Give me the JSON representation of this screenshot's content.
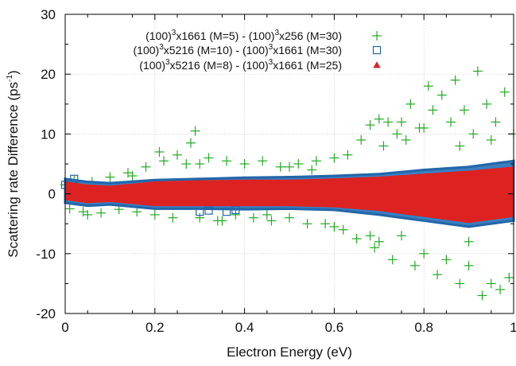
{
  "chart_data": {
    "type": "scatter",
    "xlabel": "Electron Energy (eV)",
    "ylabel_main": "Scattering rate Difference (ps",
    "ylabel_sup": "-1",
    "ylabel_close": ")",
    "xlim": [
      0,
      1
    ],
    "ylim": [
      -20,
      30
    ],
    "xticks": [
      0,
      0.2,
      0.4,
      0.6,
      0.8,
      1
    ],
    "xtick_labels": [
      "0",
      "0.2",
      "0.4",
      "0.6",
      "0.8",
      "1"
    ],
    "yticks": [
      -20,
      -10,
      0,
      10,
      20,
      30
    ],
    "ytick_labels": [
      "-20",
      "-10",
      "0",
      "10",
      "20",
      "30"
    ],
    "grid": true,
    "legend_position": "top-right",
    "colors": {
      "series1": "#22aa22",
      "series2": "#2266aa",
      "series3": "#dd2222",
      "grid": "#c8c8c8"
    },
    "series": [
      {
        "name_parts": [
          "(100)",
          "3",
          "x1661 (M=5) - (100)",
          "3",
          "x256 (M=30)"
        ],
        "marker": "plus",
        "color": "#22aa22",
        "points": [
          [
            0.0,
            1.5
          ],
          [
            0.01,
            -2.5
          ],
          [
            0.02,
            2.2
          ],
          [
            0.04,
            -3.0
          ],
          [
            0.06,
            2.0
          ],
          [
            0.08,
            -3.2
          ],
          [
            0.1,
            2.8
          ],
          [
            0.12,
            -2.6
          ],
          [
            0.14,
            3.5
          ],
          [
            0.16,
            -3.0
          ],
          [
            0.18,
            4.5
          ],
          [
            0.2,
            -3.5
          ],
          [
            0.21,
            7.0
          ],
          [
            0.22,
            5.5
          ],
          [
            0.24,
            -4.0
          ],
          [
            0.25,
            6.5
          ],
          [
            0.27,
            5.0
          ],
          [
            0.28,
            8.5
          ],
          [
            0.29,
            10.5
          ],
          [
            0.3,
            -4.0
          ],
          [
            0.32,
            6.0
          ],
          [
            0.34,
            -4.5
          ],
          [
            0.36,
            5.5
          ],
          [
            0.38,
            -3.5
          ],
          [
            0.4,
            5.0
          ],
          [
            0.42,
            -4.0
          ],
          [
            0.44,
            5.5
          ],
          [
            0.46,
            -4.5
          ],
          [
            0.48,
            4.5
          ],
          [
            0.5,
            -4.0
          ],
          [
            0.52,
            5.0
          ],
          [
            0.54,
            -5.0
          ],
          [
            0.56,
            5.5
          ],
          [
            0.58,
            -5.0
          ],
          [
            0.6,
            6.0
          ],
          [
            0.62,
            -6.0
          ],
          [
            0.63,
            6.5
          ],
          [
            0.65,
            -7.5
          ],
          [
            0.66,
            9.0
          ],
          [
            0.68,
            11.5
          ],
          [
            0.69,
            -9.0
          ],
          [
            0.7,
            12.5
          ],
          [
            0.71,
            8.0
          ],
          [
            0.72,
            12.0
          ],
          [
            0.73,
            -11.0
          ],
          [
            0.74,
            10.0
          ],
          [
            0.75,
            -7.0
          ],
          [
            0.76,
            9.0
          ],
          [
            0.77,
            15.0
          ],
          [
            0.78,
            -12.0
          ],
          [
            0.79,
            11.0
          ],
          [
            0.8,
            -10.0
          ],
          [
            0.81,
            18.0
          ],
          [
            0.82,
            14.0
          ],
          [
            0.83,
            -13.5
          ],
          [
            0.84,
            16.5
          ],
          [
            0.85,
            -11.0
          ],
          [
            0.86,
            12.0
          ],
          [
            0.87,
            19.0
          ],
          [
            0.88,
            -15.0
          ],
          [
            0.89,
            14.0
          ],
          [
            0.9,
            -12.0
          ],
          [
            0.91,
            10.0
          ],
          [
            0.92,
            20.5
          ],
          [
            0.93,
            -17.0
          ],
          [
            0.94,
            15.0
          ],
          [
            0.95,
            -15.0
          ],
          [
            0.96,
            12.0
          ],
          [
            0.97,
            -16.0
          ],
          [
            0.98,
            17.0
          ],
          [
            0.99,
            -14.0
          ],
          [
            1.0,
            10.0
          ],
          [
            0.3,
            5.0
          ],
          [
            0.5,
            4.5
          ],
          [
            0.6,
            -5.5
          ],
          [
            0.7,
            -8.0
          ],
          [
            0.8,
            11.0
          ],
          [
            0.9,
            -8.0
          ],
          [
            0.95,
            9.0
          ],
          [
            0.88,
            8.0
          ],
          [
            0.75,
            12.0
          ],
          [
            0.68,
            -7.0
          ],
          [
            0.55,
            4.0
          ],
          [
            0.45,
            -3.5
          ],
          [
            0.35,
            -4.5
          ],
          [
            0.15,
            3.0
          ],
          [
            0.05,
            -3.5
          ]
        ]
      },
      {
        "name_parts": [
          "(100)",
          "3",
          "x5216 (M=10) - (100)",
          "3",
          "x1661 (M=30)"
        ],
        "marker": "square",
        "color": "#2266aa",
        "band": {
          "x": [
            0,
            0.05,
            0.1,
            0.2,
            0.3,
            0.4,
            0.5,
            0.6,
            0.7,
            0.8,
            0.9,
            1.0
          ],
          "upper": [
            2.5,
            2.0,
            1.8,
            2.3,
            2.5,
            2.7,
            2.8,
            3.0,
            3.3,
            4.0,
            4.5,
            5.5
          ],
          "lower": [
            -1.5,
            -2.0,
            -1.8,
            -2.5,
            -2.5,
            -2.6,
            -2.5,
            -2.7,
            -3.5,
            -4.5,
            -5.5,
            -4.5
          ]
        },
        "points": [
          [
            0.3,
            -3.0
          ],
          [
            0.32,
            -2.8
          ],
          [
            0.36,
            -3.0
          ],
          [
            0.38,
            -2.7
          ],
          [
            0.02,
            2.5
          ],
          [
            0.0,
            1.5
          ]
        ]
      },
      {
        "name_parts": [
          "(100)",
          "3",
          "x5216 (M=8) - (100)",
          "3",
          "x1661 (M=25)"
        ],
        "marker": "triangle",
        "color": "#dd2222",
        "band": {
          "x": [
            0,
            0.05,
            0.1,
            0.2,
            0.3,
            0.4,
            0.5,
            0.6,
            0.7,
            0.8,
            0.9,
            1.0
          ],
          "upper": [
            2.0,
            1.5,
            1.3,
            2.0,
            2.2,
            2.3,
            2.3,
            2.5,
            2.8,
            3.3,
            3.8,
            4.5
          ],
          "lower": [
            -1.0,
            -1.5,
            -1.3,
            -2.0,
            -2.0,
            -2.0,
            -2.0,
            -2.2,
            -2.8,
            -3.8,
            -4.8,
            -3.8
          ]
        },
        "points": []
      }
    ]
  }
}
